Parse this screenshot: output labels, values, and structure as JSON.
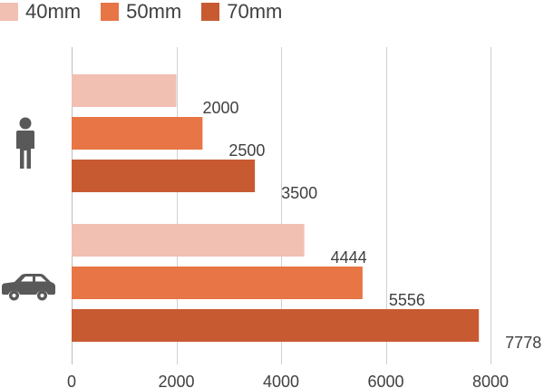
{
  "chart_data": {
    "type": "bar",
    "orientation": "horizontal",
    "categories": [
      "person-icon",
      "car-icon"
    ],
    "series": [
      {
        "name": "40mm",
        "color": "#f2bfb3",
        "values": [
          2000,
          4444
        ]
      },
      {
        "name": "50mm",
        "color": "#e87545",
        "values": [
          2500,
          5556
        ]
      },
      {
        "name": "70mm",
        "color": "#c85a32",
        "values": [
          3500,
          7778
        ]
      }
    ],
    "xlim": [
      0,
      8000
    ],
    "xticks": [
      0,
      2000,
      4000,
      6000,
      8000
    ],
    "grid": true,
    "legend_position": "top-left"
  }
}
